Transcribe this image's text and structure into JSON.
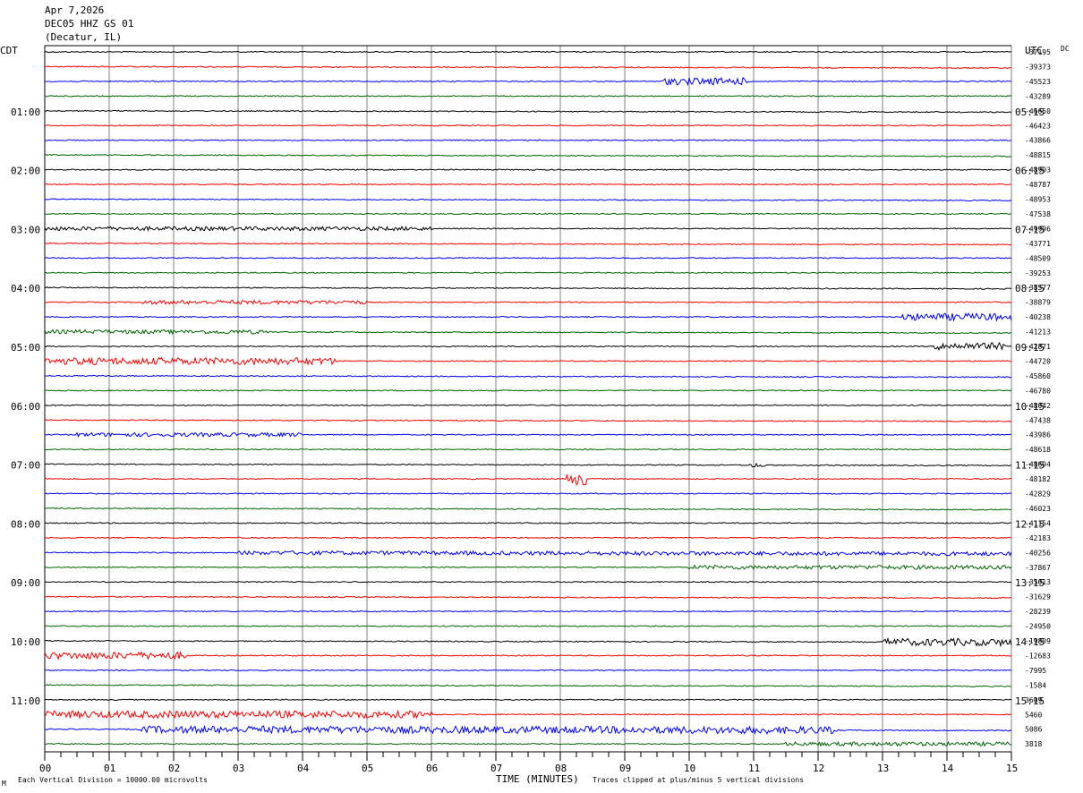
{
  "header": {
    "date": "Apr 7,2026",
    "station": "DEC05 HHZ GS 01",
    "location": "(Decatur, IL)"
  },
  "left_tz": "CDT",
  "right_tz": "UTC",
  "corner_label": "DC",
  "footer": {
    "scale_note": "Each Vertical Division = 10000.00 microvolts",
    "clip_note": "Traces clipped at plus/minus 5 vertical divisions",
    "mark": "M"
  },
  "colors": {
    "traces": [
      "#000000",
      "#ff0000",
      "#0000ff",
      "#006400"
    ],
    "grid": "#808080"
  },
  "chart_data": {
    "type": "line",
    "title": "",
    "xlabel": "TIME (MINUTES)",
    "x_ticks": [
      "00",
      "01",
      "02",
      "03",
      "04",
      "05",
      "06",
      "07",
      "08",
      "09",
      "10",
      "11",
      "12",
      "13",
      "14",
      "15"
    ],
    "xlim": [
      0,
      15
    ],
    "left_hour_labels": [
      "01:00",
      "02:00",
      "03:00",
      "04:00",
      "05:00",
      "06:00",
      "07:00",
      "08:00",
      "09:00",
      "10:00",
      "11:00"
    ],
    "right_hour_labels": [
      "05:15",
      "06:15",
      "07:15",
      "08:15",
      "09:15",
      "10:15",
      "11:15",
      "12:15",
      "13:15",
      "14:15",
      "15:15"
    ],
    "trace_offsets": [
      "-37195",
      "-39373",
      "-45523",
      "-43289",
      "-46650",
      "-46423",
      "-43866",
      "-48815",
      "-48993",
      "-48787",
      "-48953",
      "-47538",
      "-49996",
      "-43771",
      "-48509",
      "-39253",
      "-38577",
      "-38879",
      "-40238",
      "-41213",
      "-42871",
      "-44720",
      "-45860",
      "-46780",
      "-48042",
      "-47438",
      "-43986",
      "-48618",
      "-48694",
      "-48182",
      "-42829",
      "-46023",
      "-41154",
      "-42183",
      "-40256",
      "-37867",
      "-35013",
      "-31629",
      "-28239",
      "-24950",
      "-19809",
      "-12683",
      "-7995",
      "-1584",
      "3609",
      "5460",
      "5086",
      "3818"
    ],
    "events": [
      {
        "trace": 2,
        "minute_start": 9.6,
        "minute_end": 10.9,
        "amplitude": "medium"
      },
      {
        "trace": 12,
        "minute_start": 0.0,
        "minute_end": 6.0,
        "amplitude": "low"
      },
      {
        "trace": 17,
        "minute_start": 1.5,
        "minute_end": 5.0,
        "amplitude": "low"
      },
      {
        "trace": 18,
        "minute_start": 13.3,
        "minute_end": 15.0,
        "amplitude": "medium"
      },
      {
        "trace": 19,
        "minute_start": 0.0,
        "minute_end": 3.5,
        "amplitude": "low"
      },
      {
        "trace": 20,
        "minute_start": 13.8,
        "minute_end": 14.9,
        "amplitude": "medium"
      },
      {
        "trace": 21,
        "minute_start": 0.0,
        "minute_end": 4.5,
        "amplitude": "medium"
      },
      {
        "trace": 26,
        "minute_start": 0.5,
        "minute_end": 4.0,
        "amplitude": "low"
      },
      {
        "trace": 28,
        "minute_start": 10.9,
        "minute_end": 11.2,
        "amplitude": "low"
      },
      {
        "trace": 29,
        "minute_start": 8.1,
        "minute_end": 8.4,
        "amplitude": "high"
      },
      {
        "trace": 34,
        "minute_start": 3.0,
        "minute_end": 15.0,
        "amplitude": "low"
      },
      {
        "trace": 35,
        "minute_start": 10.0,
        "minute_end": 15.0,
        "amplitude": "low"
      },
      {
        "trace": 40,
        "minute_start": 13.0,
        "minute_end": 15.0,
        "amplitude": "medium"
      },
      {
        "trace": 41,
        "minute_start": 0.0,
        "minute_end": 2.2,
        "amplitude": "medium"
      },
      {
        "trace": 45,
        "minute_start": 0.0,
        "minute_end": 6.0,
        "amplitude": "medium"
      },
      {
        "trace": 46,
        "minute_start": 1.5,
        "minute_end": 12.3,
        "amplitude": "medium"
      },
      {
        "trace": 47,
        "minute_start": 11.5,
        "minute_end": 15.0,
        "amplitude": "low"
      }
    ]
  }
}
